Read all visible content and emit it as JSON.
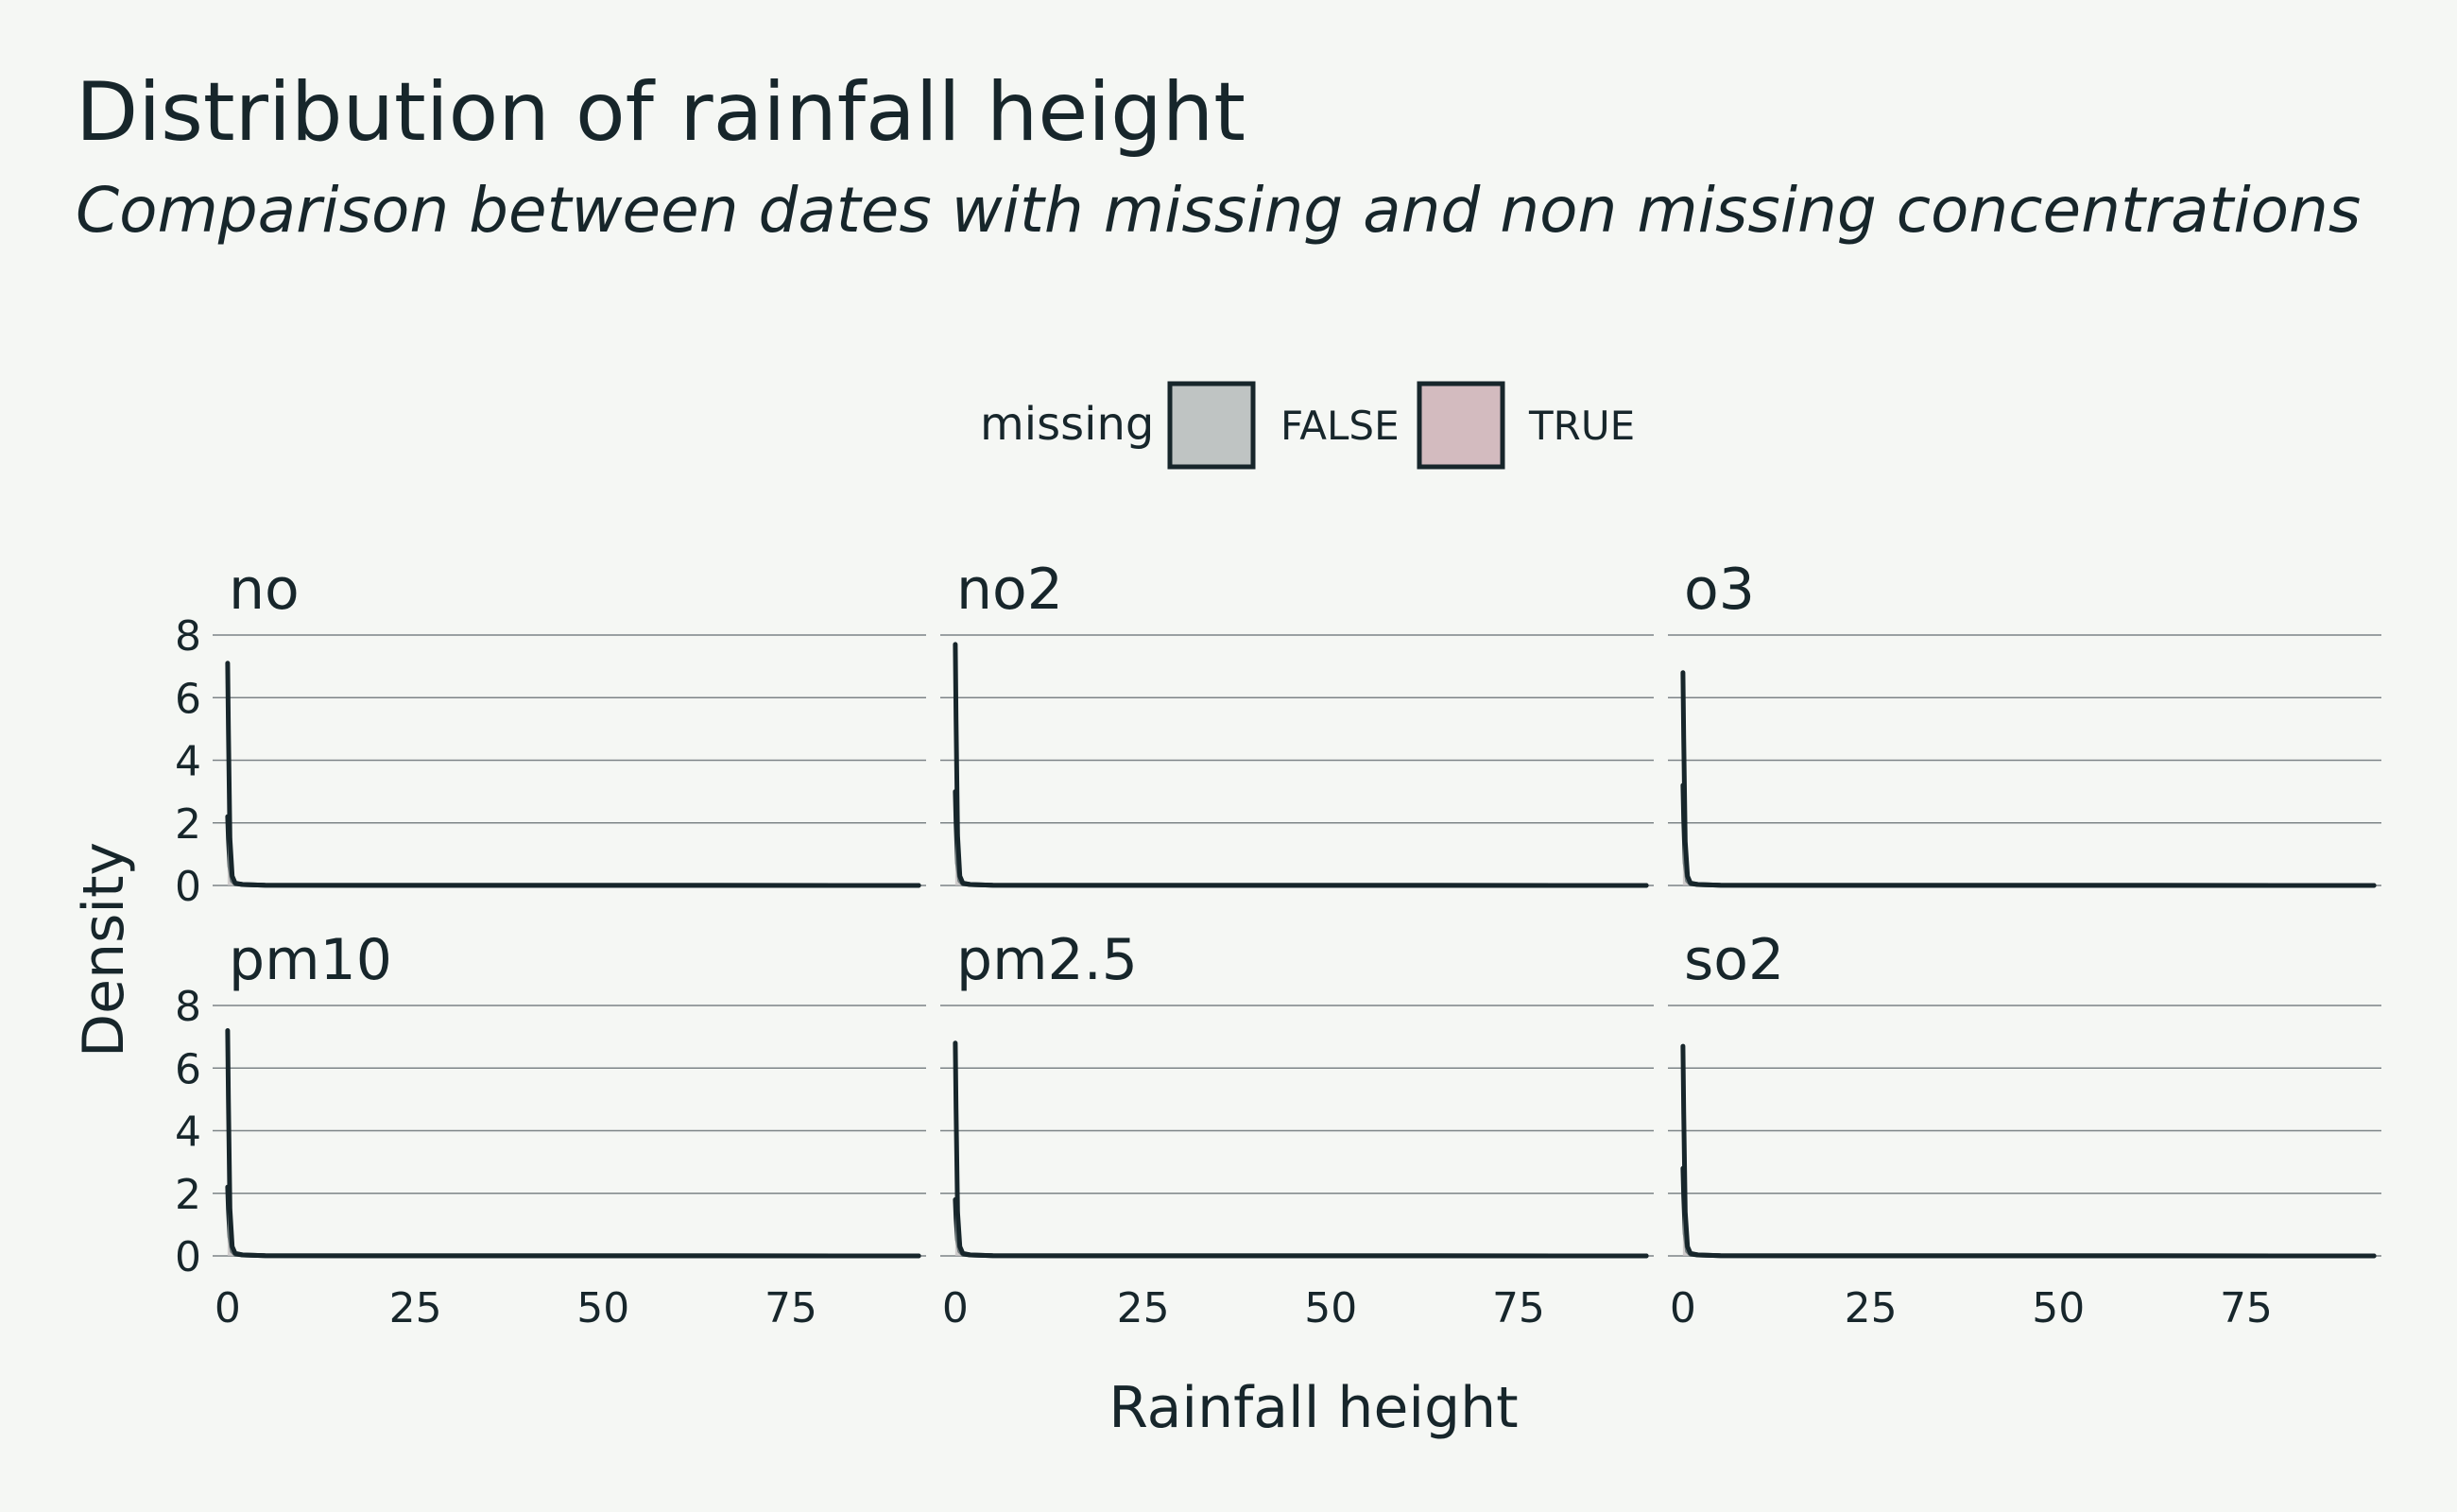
{
  "chart_data": {
    "type": "area",
    "title": "Distribution of rainfall height",
    "subtitle": "Comparison between dates with missing and non missing concentrations",
    "xlabel": "Rainfall height",
    "ylabel": "Density",
    "xlim": [
      -2,
      93
    ],
    "ylim": [
      0,
      8
    ],
    "x_ticks": [
      "0",
      "25",
      "50",
      "75"
    ],
    "x_tick_values": [
      0,
      25,
      50,
      75
    ],
    "y_ticks": [
      "0",
      "2",
      "4",
      "6",
      "8"
    ],
    "y_tick_values": [
      0,
      2,
      4,
      6,
      8
    ],
    "grid": "horizontal",
    "legend": {
      "title": "missing",
      "position": "top",
      "entries": [
        {
          "label": "FALSE",
          "fill": "#bfc4c3"
        },
        {
          "label": "TRUE",
          "fill": "#d3bbbf"
        }
      ]
    },
    "colors": {
      "line": "#17262b",
      "background": "#f5f7f4",
      "grid": "#7d8487"
    },
    "facets": [
      {
        "label": "no",
        "series": [
          {
            "name": "FALSE",
            "x": [
              0,
              0.1,
              0.3,
              0.6,
              1.0,
              2.0,
              5.0,
              20.0,
              50.0,
              92.0
            ],
            "values": [
              7.1,
              5.0,
              1.5,
              0.3,
              0.08,
              0.03,
              0.01,
              0.004,
              0.002,
              0.001
            ]
          },
          {
            "name": "TRUE",
            "x": [
              0,
              0.1,
              0.3,
              0.6,
              1.0,
              2.0,
              5.0,
              20.0,
              50.0,
              92.0
            ],
            "values": [
              2.2,
              1.5,
              0.6,
              0.15,
              0.06,
              0.03,
              0.01,
              0.004,
              0.002,
              0.001
            ]
          }
        ]
      },
      {
        "label": "no2",
        "series": [
          {
            "name": "FALSE",
            "x": [
              0,
              0.1,
              0.3,
              0.6,
              1.0,
              2.0,
              5.0,
              20.0,
              50.0,
              92.0
            ],
            "values": [
              7.7,
              5.3,
              1.6,
              0.3,
              0.08,
              0.03,
              0.01,
              0.004,
              0.002,
              0.001
            ]
          },
          {
            "name": "TRUE",
            "x": [
              0,
              0.1,
              0.3,
              0.6,
              1.0,
              2.0,
              5.0,
              20.0,
              50.0,
              92.0
            ],
            "values": [
              3.0,
              2.0,
              0.7,
              0.15,
              0.06,
              0.03,
              0.01,
              0.004,
              0.002,
              0.001
            ]
          }
        ]
      },
      {
        "label": "o3",
        "series": [
          {
            "name": "FALSE",
            "x": [
              0,
              0.1,
              0.3,
              0.6,
              1.0,
              2.0,
              5.0,
              20.0,
              50.0,
              92.0
            ],
            "values": [
              6.8,
              4.7,
              1.4,
              0.3,
              0.08,
              0.03,
              0.01,
              0.004,
              0.002,
              0.001
            ]
          },
          {
            "name": "TRUE",
            "x": [
              0,
              0.1,
              0.3,
              0.6,
              1.0,
              2.0,
              5.0,
              20.0,
              50.0,
              92.0
            ],
            "values": [
              3.2,
              2.1,
              0.7,
              0.15,
              0.06,
              0.03,
              0.01,
              0.004,
              0.002,
              0.001
            ]
          }
        ]
      },
      {
        "label": "pm10",
        "series": [
          {
            "name": "FALSE",
            "x": [
              0,
              0.1,
              0.3,
              0.6,
              1.0,
              2.0,
              5.0,
              20.0,
              50.0,
              92.0
            ],
            "values": [
              7.2,
              5.0,
              1.5,
              0.3,
              0.08,
              0.03,
              0.01,
              0.004,
              0.002,
              0.001
            ]
          },
          {
            "name": "TRUE",
            "x": [
              0,
              0.1,
              0.3,
              0.6,
              1.0,
              2.0,
              5.0,
              20.0,
              50.0,
              92.0
            ],
            "values": [
              2.2,
              1.5,
              0.6,
              0.15,
              0.06,
              0.03,
              0.01,
              0.004,
              0.002,
              0.001
            ]
          }
        ]
      },
      {
        "label": "pm2.5",
        "series": [
          {
            "name": "FALSE",
            "x": [
              0,
              0.1,
              0.3,
              0.6,
              1.0,
              2.0,
              5.0,
              20.0,
              50.0,
              92.0
            ],
            "values": [
              6.8,
              4.7,
              1.4,
              0.3,
              0.08,
              0.03,
              0.01,
              0.004,
              0.002,
              0.001
            ]
          },
          {
            "name": "TRUE",
            "x": [
              0,
              0.1,
              0.3,
              0.6,
              1.0,
              2.0,
              5.0,
              20.0,
              50.0,
              92.0
            ],
            "values": [
              1.8,
              1.2,
              0.5,
              0.15,
              0.06,
              0.03,
              0.01,
              0.004,
              0.002,
              0.001
            ]
          }
        ]
      },
      {
        "label": "so2",
        "series": [
          {
            "name": "FALSE",
            "x": [
              0,
              0.1,
              0.3,
              0.6,
              1.0,
              2.0,
              5.0,
              20.0,
              50.0,
              92.0
            ],
            "values": [
              6.7,
              4.6,
              1.4,
              0.3,
              0.08,
              0.03,
              0.01,
              0.004,
              0.002,
              0.001
            ]
          },
          {
            "name": "TRUE",
            "x": [
              0,
              0.1,
              0.3,
              0.6,
              1.0,
              2.0,
              5.0,
              20.0,
              50.0,
              92.0
            ],
            "values": [
              2.8,
              1.9,
              0.7,
              0.15,
              0.06,
              0.03,
              0.01,
              0.004,
              0.002,
              0.001
            ]
          }
        ]
      }
    ]
  }
}
